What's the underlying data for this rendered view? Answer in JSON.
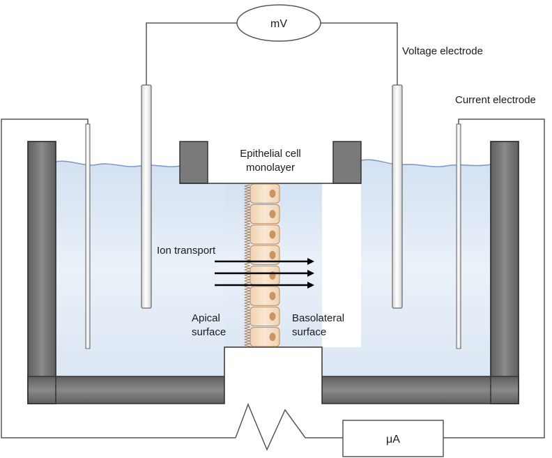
{
  "labels": {
    "voltmeter": "mV",
    "ammeter": "μA",
    "voltage_electrode": "Voltage electrode",
    "current_electrode": "Current electrode",
    "monolayer_line1": "Epithelial cell",
    "monolayer_line2": "monolayer",
    "ion_transport": "Ion transport",
    "apical_line1": "Apical",
    "apical_line2": "surface",
    "basolateral_line1": "Basolateral",
    "basolateral_line2": "surface"
  },
  "colors": {
    "chamber_wall": "#6b6b6b",
    "solution": "#dfe9f5",
    "water_line": "#7f95c6",
    "cell_fill": "#f4dcc0",
    "cell_nucleus": "#c99563",
    "wire": "#555555",
    "arrow": "#000000"
  },
  "counts": {
    "cells": 8,
    "ion_arrows": 3
  }
}
